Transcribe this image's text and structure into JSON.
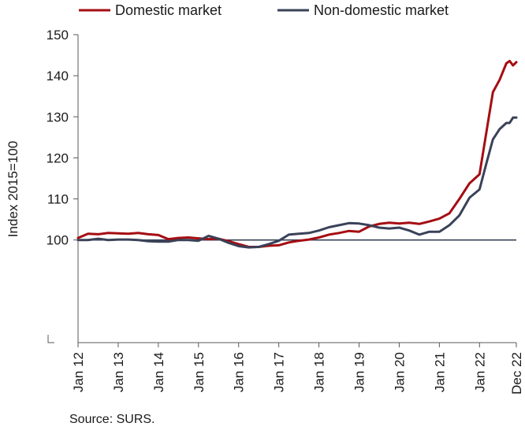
{
  "chart_data": {
    "type": "line",
    "ylabel": "Index 2015=100",
    "ylim": [
      75,
      150
    ],
    "yticks": [
      100,
      110,
      120,
      130,
      140,
      150
    ],
    "x_tick_labels": [
      "Jan 12",
      "Jan 13",
      "Jan 14",
      "Jan 15",
      "Jan 16",
      "Jan 17",
      "Jan 18",
      "Jan 19",
      "Jan 20",
      "Jan 21",
      "Jan 22",
      "Dec 22"
    ],
    "x_start": "Jan 2012",
    "x_end": "Dec 2022",
    "legend_position": "top",
    "reference_line": 100,
    "series": [
      {
        "name": "Domestic market",
        "color": "#a50d12",
        "points": [
          [
            "Jan 2012",
            100.5
          ],
          [
            "Apr 2012",
            101.5
          ],
          [
            "Jul 2012",
            101.4
          ],
          [
            "Oct 2012",
            101.7
          ],
          [
            "Jan 2013",
            101.6
          ],
          [
            "Apr 2013",
            101.5
          ],
          [
            "Jul 2013",
            101.7
          ],
          [
            "Oct 2013",
            101.4
          ],
          [
            "Jan 2014",
            101.2
          ],
          [
            "Apr 2014",
            100.2
          ],
          [
            "Jul 2014",
            100.5
          ],
          [
            "Oct 2014",
            100.6
          ],
          [
            "Jan 2015",
            100.4
          ],
          [
            "Apr 2015",
            100.2
          ],
          [
            "Jul 2015",
            100.3
          ],
          [
            "Oct 2015",
            99.7
          ],
          [
            "Jan 2016",
            99.0
          ],
          [
            "Apr 2016",
            98.3
          ],
          [
            "Jul 2016",
            98.3
          ],
          [
            "Oct 2016",
            98.6
          ],
          [
            "Jan 2017",
            98.7
          ],
          [
            "Apr 2017",
            99.4
          ],
          [
            "Jul 2017",
            99.8
          ],
          [
            "Oct 2017",
            100.1
          ],
          [
            "Jan 2018",
            100.6
          ],
          [
            "Apr 2018",
            101.3
          ],
          [
            "Jul 2018",
            101.7
          ],
          [
            "Oct 2018",
            102.2
          ],
          [
            "Jan 2019",
            102.0
          ],
          [
            "Apr 2019",
            103.3
          ],
          [
            "Jul 2019",
            103.9
          ],
          [
            "Oct 2019",
            104.2
          ],
          [
            "Jan 2020",
            104.0
          ],
          [
            "Apr 2020",
            104.2
          ],
          [
            "Jul 2020",
            103.9
          ],
          [
            "Oct 2020",
            104.5
          ],
          [
            "Jan 2021",
            105.2
          ],
          [
            "Apr 2021",
            106.5
          ],
          [
            "Jul 2021",
            110.0
          ],
          [
            "Oct 2021",
            113.8
          ],
          [
            "Jan 2022",
            116.0
          ],
          [
            "Mar 2022",
            126.0
          ],
          [
            "May 2022",
            136.0
          ],
          [
            "Jul 2022",
            139.0
          ],
          [
            "Sep 2022",
            143.0
          ],
          [
            "Oct 2022",
            143.6
          ],
          [
            "Nov 2022",
            142.5
          ],
          [
            "Dec 2022",
            143.3
          ]
        ]
      },
      {
        "name": "Non-domestic market",
        "color": "#3a4258",
        "points": [
          [
            "Jan 2012",
            100.0
          ],
          [
            "Apr 2012",
            100.0
          ],
          [
            "Jul 2012",
            100.3
          ],
          [
            "Oct 2012",
            100.0
          ],
          [
            "Jan 2013",
            100.1
          ],
          [
            "Apr 2013",
            100.1
          ],
          [
            "Jul 2013",
            100.0
          ],
          [
            "Oct 2013",
            99.7
          ],
          [
            "Jan 2014",
            99.6
          ],
          [
            "Apr 2014",
            99.6
          ],
          [
            "Jul 2014",
            100.0
          ],
          [
            "Oct 2014",
            100.0
          ],
          [
            "Jan 2015",
            99.8
          ],
          [
            "Apr 2015",
            101.0
          ],
          [
            "Jul 2015",
            100.3
          ],
          [
            "Oct 2015",
            99.3
          ],
          [
            "Jan 2016",
            98.5
          ],
          [
            "Apr 2016",
            98.2
          ],
          [
            "Jul 2016",
            98.3
          ],
          [
            "Oct 2016",
            99.0
          ],
          [
            "Jan 2017",
            99.8
          ],
          [
            "Apr 2017",
            101.3
          ],
          [
            "Jul 2017",
            101.5
          ],
          [
            "Oct 2017",
            101.7
          ],
          [
            "Jan 2018",
            102.3
          ],
          [
            "Apr 2018",
            103.1
          ],
          [
            "Jul 2018",
            103.6
          ],
          [
            "Oct 2018",
            104.1
          ],
          [
            "Jan 2019",
            104.0
          ],
          [
            "Apr 2019",
            103.6
          ],
          [
            "Jul 2019",
            103.0
          ],
          [
            "Oct 2019",
            102.8
          ],
          [
            "Jan 2020",
            103.0
          ],
          [
            "Apr 2020",
            102.3
          ],
          [
            "Jul 2020",
            101.3
          ],
          [
            "Oct 2020",
            102.0
          ],
          [
            "Jan 2021",
            102.0
          ],
          [
            "Apr 2021",
            103.6
          ],
          [
            "Jul 2021",
            106.0
          ],
          [
            "Oct 2021",
            110.3
          ],
          [
            "Jan 2022",
            112.3
          ],
          [
            "Mar 2022",
            118.5
          ],
          [
            "May 2022",
            124.5
          ],
          [
            "Jul 2022",
            127.0
          ],
          [
            "Sep 2022",
            128.5
          ],
          [
            "Oct 2022",
            128.5
          ],
          [
            "Nov 2022",
            129.8
          ],
          [
            "Dec 2022",
            129.8
          ]
        ]
      }
    ]
  },
  "source": "Source: SURS.",
  "colors": {
    "axis": "#5a5a5a",
    "reference_line": "#3a4258"
  }
}
